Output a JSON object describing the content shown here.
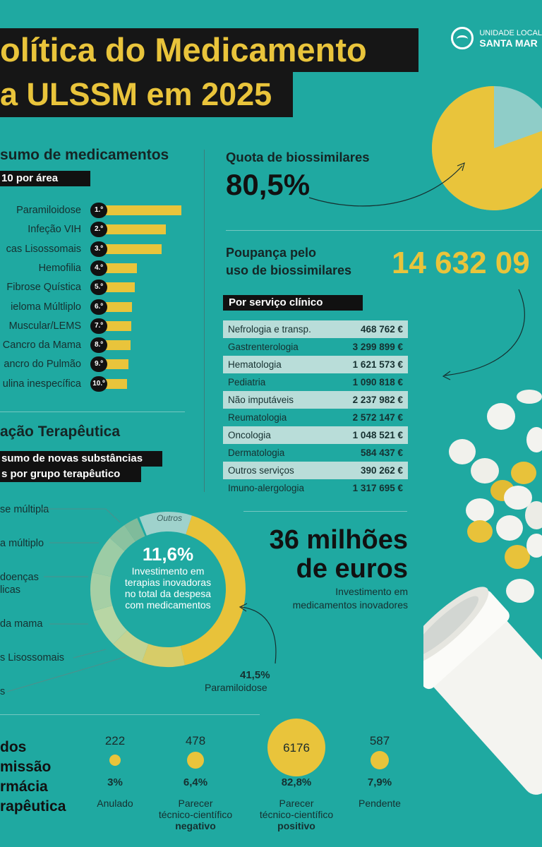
{
  "header": {
    "title_line1": "olítica do Medicamento",
    "title_line2": "a ULSSM em 2025",
    "logo_line1": "UNIDADE LOCAL",
    "logo_line2": "SANTA MAR"
  },
  "consumption": {
    "heading": "sumo de medicamentos",
    "tag": "10 por área",
    "items": [
      {
        "rank": "1.º",
        "label": "Paramiloidose",
        "value": 1.0
      },
      {
        "rank": "2.º",
        "label": "Infeção VIH",
        "value": 0.79
      },
      {
        "rank": "3.º",
        "label": "cas Lisossomais",
        "value": 0.74
      },
      {
        "rank": "4.º",
        "label": "Hemofilia",
        "value": 0.41
      },
      {
        "rank": "5.º",
        "label": "Fibrose Quística",
        "value": 0.38
      },
      {
        "rank": "6.º",
        "label": "ieloma Múltliplo",
        "value": 0.35
      },
      {
        "rank": "7.º",
        "label": "Muscular/LEMS",
        "value": 0.34
      },
      {
        "rank": "8.º",
        "label": "Cancro da Mama",
        "value": 0.33
      },
      {
        "rank": "9.º",
        "label": "ancro do Pulmão",
        "value": 0.3
      },
      {
        "rank": "10.º",
        "label": "ulina inespecífica",
        "value": 0.28
      }
    ]
  },
  "biosimilars": {
    "quota_label": "Quota de biossimilares",
    "quota_value": "80,5%",
    "quota_fraction": 0.805,
    "savings_label_line1": "Poupança pelo",
    "savings_label_line2": "uso de biossimilares",
    "savings_value": "14 632 09",
    "service_tag": "Por serviço clínico",
    "services": [
      {
        "name": "Nefrologia e transp.",
        "value": "468 762 €"
      },
      {
        "name": "Gastrenterologia",
        "value": "3 299 899 €"
      },
      {
        "name": "Hematologia",
        "value": "1 621 573 €"
      },
      {
        "name": "Pediatria",
        "value": "1 090 818 €"
      },
      {
        "name": "Não imputáveis",
        "value": "2 237 982 €"
      },
      {
        "name": "Reumatologia",
        "value": "2 572 147 €"
      },
      {
        "name": "Oncologia",
        "value": "1 048 521 €"
      },
      {
        "name": "Dermatologia",
        "value": "584 437 €"
      },
      {
        "name": "Outros serviços",
        "value": "390 262 €"
      },
      {
        "name": "Imuno-alergologia",
        "value": "1 317 695 €"
      }
    ]
  },
  "innovation": {
    "heading": "ação Terapêutica",
    "tag_line1": "sumo de novas substâncias",
    "tag_line2": "s por grupo terapêutico",
    "center_pct": "11,6%",
    "center_desc": "Investimento em terapias inovadoras no total da despesa com medicamentos",
    "outros_label": "Outros",
    "paramiloidose_pct": "41,5%",
    "paramiloidose_label": "Paramiloidose",
    "groups": [
      "se múltipla",
      "a múltiplo",
      "doenças",
      "licas",
      "da mama",
      "s Lisossomais",
      "s"
    ],
    "millions_line1": "36 milhões",
    "millions_line2": "de euros",
    "millions_sub_line1": "Investimento em",
    "millions_sub_line2": "medicamentos inovadores"
  },
  "commission": {
    "title_lines": [
      "dos",
      "missão",
      "rmácia",
      "rapêutica"
    ],
    "stats": [
      {
        "count": "222",
        "pct": "3%",
        "label_line1": "Anulado",
        "label_line2": "",
        "label_line3": "",
        "fraction": 0.03
      },
      {
        "count": "478",
        "pct": "6,4%",
        "label_line1": "Parecer",
        "label_line2": "técnico-científico",
        "label_line3": "negativo",
        "fraction": 0.064
      },
      {
        "count": "6176",
        "pct": "82,8%",
        "label_line1": "Parecer",
        "label_line2": "técnico-científico",
        "label_line3": "positivo",
        "fraction": 0.828
      },
      {
        "count": "587",
        "pct": "7,9%",
        "label_line1": "Pendente",
        "label_line2": "",
        "label_line3": "",
        "fraction": 0.079
      }
    ]
  },
  "colors": {
    "background": "#1fa9a1",
    "accent": "#e9c43b",
    "dark": "#161616",
    "light_teal": "#8fcdc8"
  }
}
